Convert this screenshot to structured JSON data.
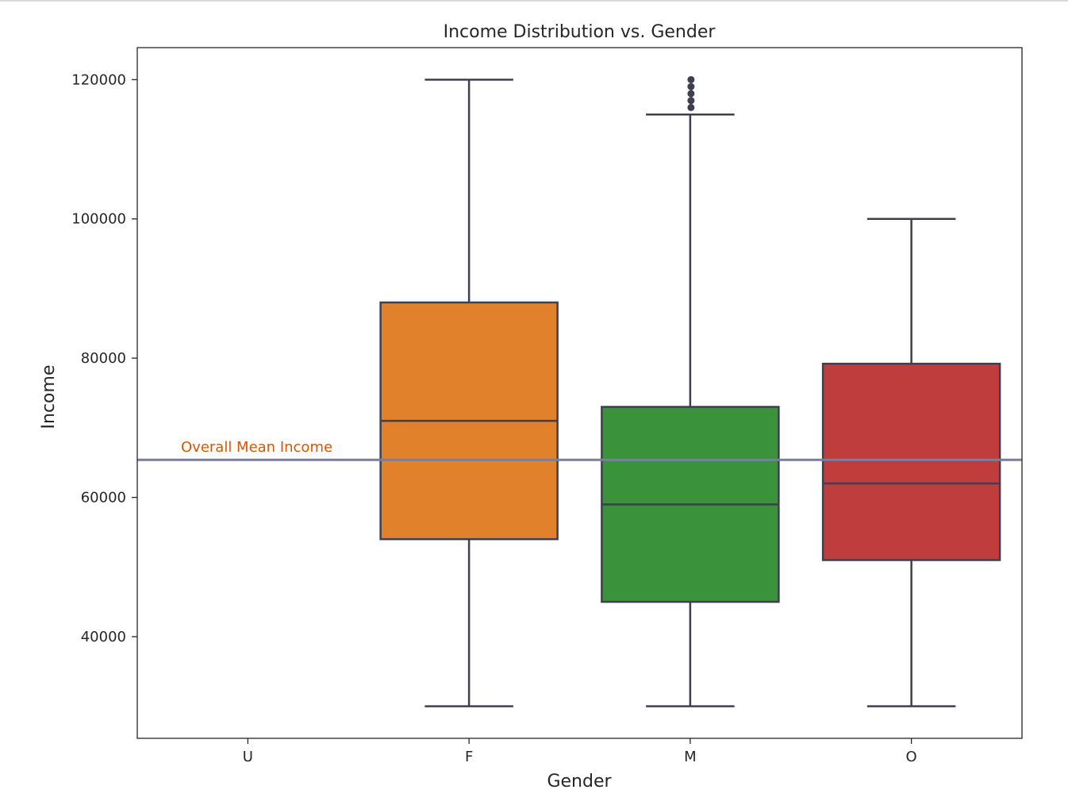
{
  "chart_data": {
    "type": "box",
    "title": "Income Distribution vs. Gender",
    "xlabel": "Gender",
    "ylabel": "Income",
    "ylim": [
      25400,
      124600
    ],
    "y_ticks": [
      40000,
      60000,
      80000,
      100000,
      120000
    ],
    "categories": [
      "U",
      "F",
      "M",
      "O"
    ],
    "boxes": [
      {
        "category": "U",
        "whisker_low": 65400,
        "q1": 65400,
        "median": 65400,
        "q3": 65400,
        "whisker_high": 65400,
        "color": "#3b75af",
        "outliers": []
      },
      {
        "category": "F",
        "whisker_low": 30000,
        "q1": 54000,
        "median": 71000,
        "q3": 88000,
        "whisker_high": 120000,
        "color": "#e1812c",
        "outliers": []
      },
      {
        "category": "M",
        "whisker_low": 30000,
        "q1": 45000,
        "median": 59000,
        "q3": 73000,
        "whisker_high": 115000,
        "color": "#3a923a",
        "outliers": [
          116000,
          117000,
          118000,
          119000,
          120000
        ]
      },
      {
        "category": "O",
        "whisker_low": 30000,
        "q1": 51000,
        "median": 62000,
        "q3": 79200,
        "whisker_high": 100000,
        "color": "#c03d3e",
        "outliers": []
      }
    ],
    "reference_line": {
      "value": 65400,
      "label": "Overall Mean Income",
      "color": "#7b7f99",
      "label_color": "#dd5500"
    },
    "grid": false,
    "legend": "none"
  }
}
